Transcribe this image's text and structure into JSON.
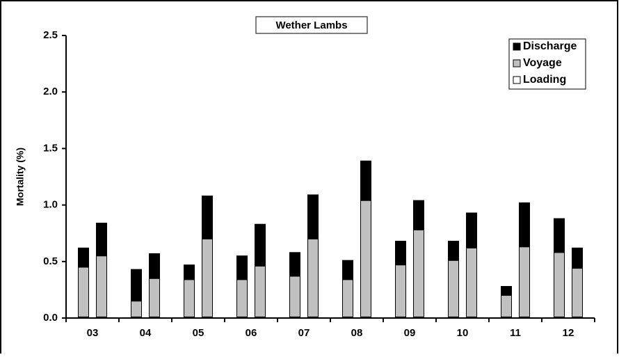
{
  "chart_data": {
    "type": "stacked-bar",
    "title": "Wether Lambs",
    "y_label": "Mortality (%)",
    "categories": [
      "03",
      null,
      "04",
      null,
      "05",
      null,
      "06",
      null,
      "07",
      null,
      "08",
      null,
      "09",
      null,
      "10",
      null,
      "11",
      null,
      "12",
      null
    ],
    "series": [
      {
        "name": "Loading",
        "color": "#ffffff",
        "values": [
          0.01,
          0.01,
          0.01,
          0.01,
          0.01,
          0.01,
          0.01,
          0.01,
          0.01,
          0.01,
          0.01,
          0.01,
          0.01,
          0.01,
          0.01,
          0.01,
          0.01,
          0.01,
          0.01,
          0.01
        ]
      },
      {
        "name": "Voyage",
        "color": "#c0c0c0",
        "values": [
          0.44,
          0.54,
          0.14,
          0.34,
          0.33,
          0.69,
          0.33,
          0.45,
          0.36,
          0.69,
          0.33,
          1.03,
          0.46,
          0.77,
          0.5,
          0.61,
          0.19,
          0.62,
          0.57,
          0.43
        ]
      },
      {
        "name": "Discharge",
        "color": "#000000",
        "values": [
          0.17,
          0.29,
          0.28,
          0.22,
          0.13,
          0.38,
          0.21,
          0.37,
          0.21,
          0.39,
          0.17,
          0.35,
          0.21,
          0.26,
          0.17,
          0.31,
          0.08,
          0.39,
          0.3,
          0.18
        ]
      }
    ],
    "ylim": [
      0,
      2.5
    ],
    "yticks": [
      {
        "value": 0,
        "label": "0.0"
      },
      {
        "value": 0.5,
        "label": "0.5"
      },
      {
        "value": 1,
        "label": "1.0"
      },
      {
        "value": 1.5,
        "label": "1.5"
      },
      {
        "value": 2,
        "label": "2.0"
      },
      {
        "value": 2.5,
        "label": "2.5"
      }
    ],
    "legend": "top-right",
    "grid": false
  }
}
